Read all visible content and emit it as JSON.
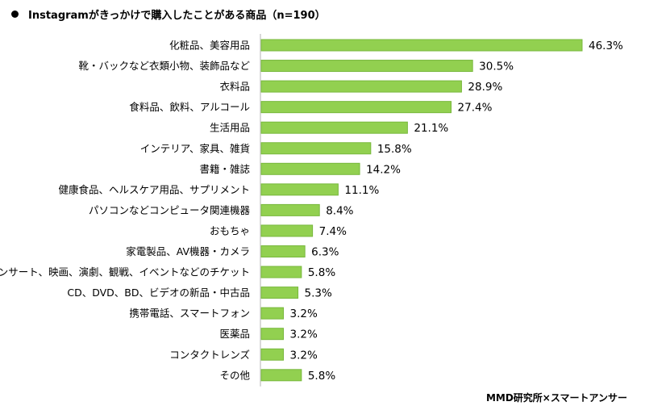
{
  "chart_data": {
    "type": "bar",
    "orientation": "horizontal",
    "title": "Instagramがきっかけで購入したことがある商品（n=190）",
    "categories": [
      "化粧品、美容用品",
      "靴・バックなど衣類小物、装飾品など",
      "衣料品",
      "食料品、飲料、アルコール",
      "生活用品",
      "インテリア、家具、雑貨",
      "書籍・雑誌",
      "健康食品、ヘルスケア用品、サプリメント",
      "パソコンなどコンピュータ関連機器",
      "おもちゃ",
      "家電製品、AV機器・カメラ",
      "コンサート、映画、演劇、観戦、イベントなどのチケット",
      "CD、DVD、BD、ビデオの新品・中古品",
      "携帯電話、スマートフォン",
      "医薬品",
      "コンタクトレンズ",
      "その他"
    ],
    "values": [
      46.3,
      30.5,
      28.9,
      27.4,
      21.1,
      15.8,
      14.2,
      11.1,
      8.4,
      7.4,
      6.3,
      5.8,
      5.3,
      3.2,
      3.2,
      3.2,
      5.8
    ],
    "unit": "%",
    "xlim": [
      0,
      46.3
    ],
    "grid": false,
    "legend": "none",
    "bar_color": "#92d050",
    "bar_border_color": "#78b83c"
  },
  "source": "MMD研究所×スマートアンサー"
}
